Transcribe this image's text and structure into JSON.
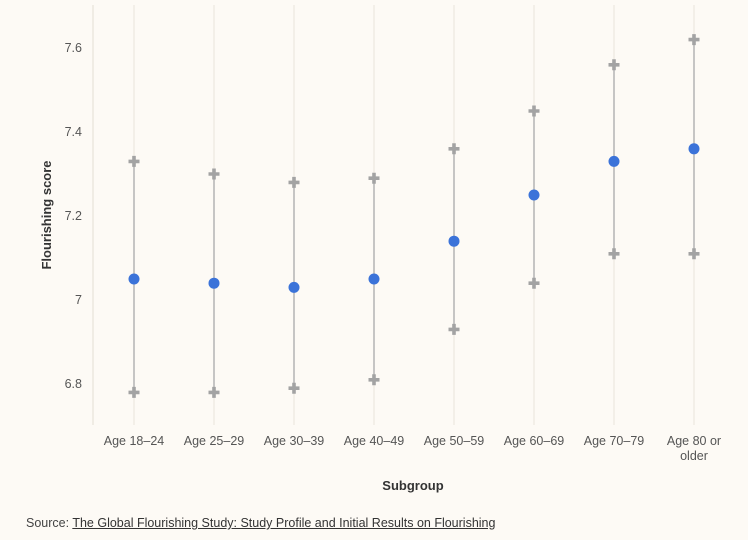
{
  "chart_data": {
    "type": "scatter",
    "categories": [
      "Age 18–24",
      "Age 25–29",
      "Age 30–39",
      "Age 40–49",
      "Age 50–59",
      "Age 60–69",
      "Age 70–79",
      "Age 80 or older"
    ],
    "values": [
      7.05,
      7.04,
      7.03,
      7.05,
      7.14,
      7.25,
      7.33,
      7.36
    ],
    "lower": [
      6.78,
      6.78,
      6.79,
      6.81,
      6.93,
      7.04,
      7.11,
      7.11
    ],
    "upper": [
      7.33,
      7.3,
      7.28,
      7.29,
      7.36,
      7.45,
      7.56,
      7.62
    ],
    "xlabel": "Subgroup",
    "ylabel": "Flourishing score",
    "ylim": [
      6.7,
      7.7
    ],
    "yticks": [
      6.8,
      7,
      7.2,
      7.4,
      7.6
    ],
    "ytick_labels": [
      "6.8",
      "7",
      "7.2",
      "7.4",
      "7.6"
    ],
    "grid": "vertical",
    "colors": {
      "point": "#3b73d9",
      "interval": "#b3b3b3",
      "marker": "#a3a3a3",
      "grid": "#e9e4dc"
    }
  },
  "source": {
    "prefix": "Source: ",
    "link_text": "The Global Flourishing Study: Study Profile and Initial Results on Flourishing"
  }
}
